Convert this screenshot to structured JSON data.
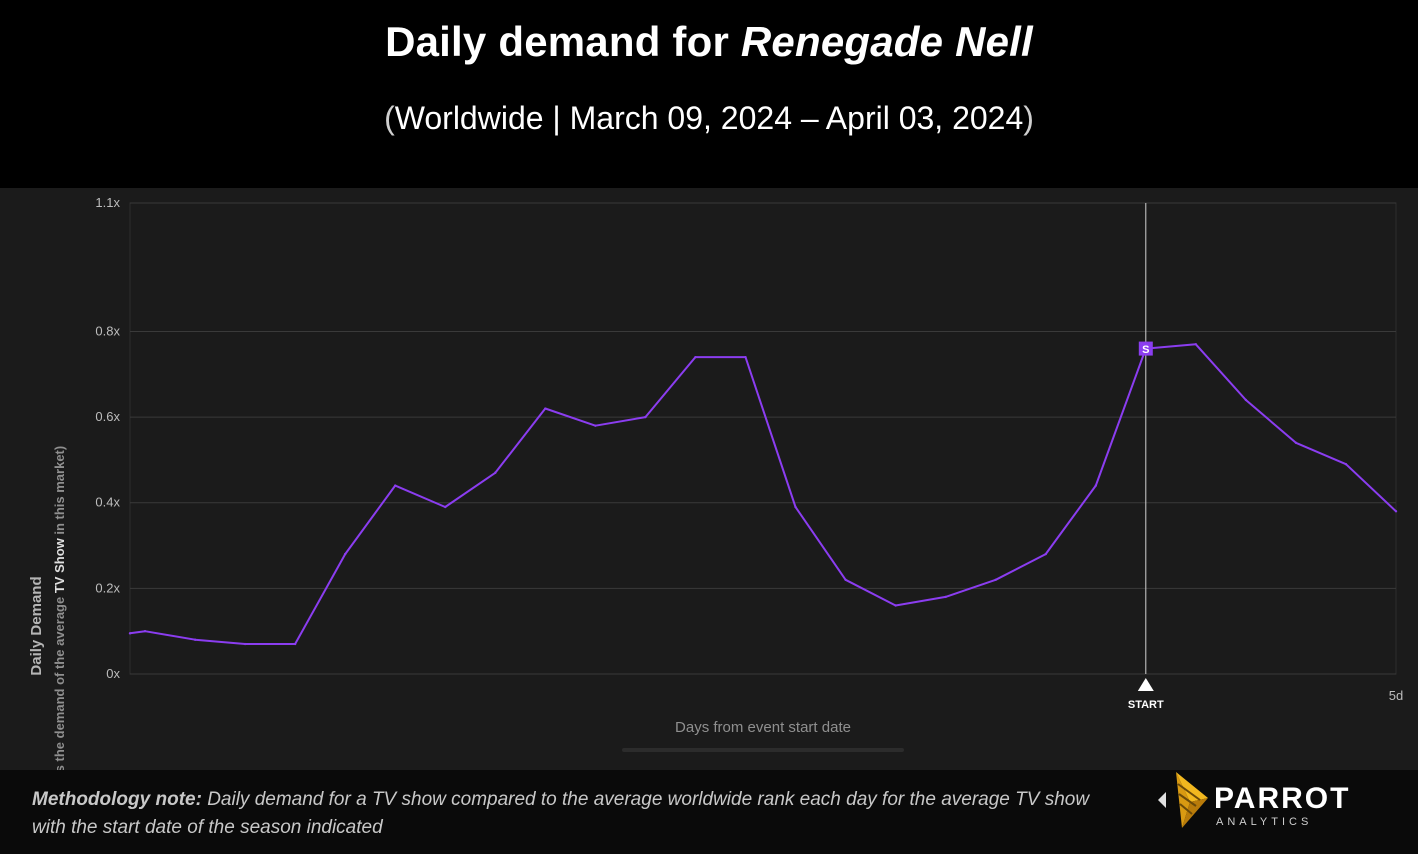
{
  "header": {
    "title_prefix": "Daily demand for ",
    "title_show": "Renegade Nell",
    "subtitle_open": "(",
    "subtitle_text": "Worldwide  | March 09, 2024 – April 03, 2024",
    "subtitle_close": ")"
  },
  "chart_data": {
    "type": "line",
    "title": "Daily demand for Renegade Nell",
    "subtitle": "(Worldwide  | March 09, 2024 – April 03, 2024)",
    "ylabel": "Daily Demand",
    "ylabel_sub_prefix": "(x times the demand of the average ",
    "ylabel_sub_bold": "TV Show",
    "ylabel_sub_suffix": " in this market)",
    "xlabel": "Days from event start date",
    "ylim": [
      0,
      1.1
    ],
    "y_ticks": [
      {
        "value": 0,
        "label": "0x"
      },
      {
        "value": 0.2,
        "label": "0.2x"
      },
      {
        "value": 0.4,
        "label": "0.4x"
      },
      {
        "value": 0.6,
        "label": "0.6x"
      },
      {
        "value": 0.8,
        "label": "0.8x"
      },
      {
        "value": 1.1,
        "label": "1.1x"
      }
    ],
    "xlim": [
      -20.3,
      5
    ],
    "x_tick_label": "5d",
    "x": [
      -20.3,
      -20,
      -19,
      -18,
      -17,
      -16,
      -15,
      -14,
      -13,
      -12,
      -11,
      -10,
      -9,
      -8,
      -7,
      -6,
      -5,
      -4,
      -3,
      -2,
      -1,
      0,
      1,
      2,
      3,
      4,
      5
    ],
    "series": [
      {
        "color": "#8b3df0",
        "values": [
          0.095,
          0.1,
          0.08,
          0.07,
          0.07,
          0.28,
          0.44,
          0.39,
          0.47,
          0.62,
          0.58,
          0.6,
          0.74,
          0.74,
          0.39,
          0.22,
          0.16,
          0.18,
          0.22,
          0.28,
          0.44,
          0.76,
          0.77,
          0.64,
          0.54,
          0.49,
          0.38
        ]
      }
    ],
    "event_marker": {
      "x": 0,
      "y": 0.76,
      "label": "START",
      "badge": "S"
    },
    "grid": true,
    "colors": {
      "line": "#8b3df0",
      "grid": "#3a3a3a",
      "marker_line": "#d0d0d0"
    }
  },
  "footer": {
    "method_label": "Methodology note:",
    "method_text": " Daily demand for a TV show compared to the average worldwide rank each day  for the average TV show with the start date of the season indicated",
    "logo_word": "PARROT",
    "logo_sub": "ANALYTICS"
  }
}
